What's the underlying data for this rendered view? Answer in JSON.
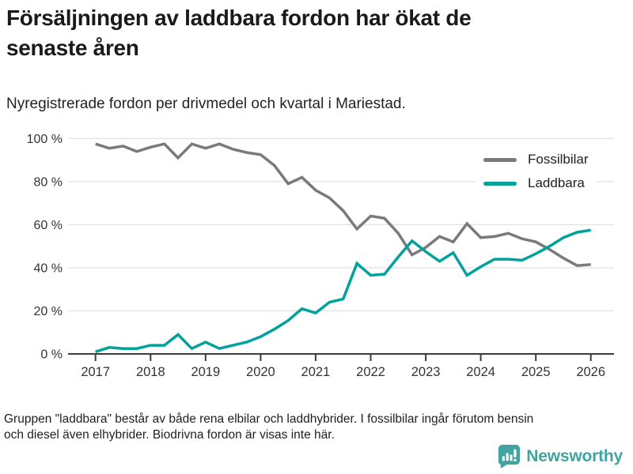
{
  "header": {
    "title": "Försäljningen av laddbara fordon har ökat de\nsenaste åren",
    "subtitle": "Nyregistrerade fordon per drivmedel och kvartal i Mariestad."
  },
  "footer": {
    "note": "Gruppen \"laddbara\" består av både rena elbilar och laddhybrider. I fossilbilar ingår förutom bensin\noch diesel även elhybrider. Biodrivna fordon är visas inte här."
  },
  "logo": {
    "text": "Newsworthy",
    "color": "#42a3a0",
    "icon": "speech-bubble-with-bar-chart-and-exclamation"
  },
  "chart_data": {
    "type": "line",
    "x_unit": "quarter",
    "x_start": "2017 Q1",
    "x_end": "2026 Q1",
    "xtick_labels": [
      "2017",
      "2018",
      "2019",
      "2020",
      "2021",
      "2022",
      "2023",
      "2024",
      "2025",
      "2026"
    ],
    "ytick_labels": [
      "0 %",
      "20 %",
      "40 %",
      "60 %",
      "80 %",
      "100 %"
    ],
    "ylim": [
      0,
      100
    ],
    "grid": "horizontal",
    "legend_position": "top-right-inside",
    "colors": {
      "gridline": "#e2e2e2",
      "axis": "#3c3c3c",
      "tick_text": "#333333"
    },
    "series": [
      {
        "name": "Fossilbilar",
        "color": "#7a7a7a",
        "values": [
          97.5,
          95.5,
          96.5,
          94,
          96,
          97.5,
          91,
          97.5,
          95.5,
          97.5,
          95,
          93.5,
          92.5,
          87.5,
          79,
          82,
          76,
          72.5,
          66.5,
          58,
          64,
          63,
          56,
          46,
          49.5,
          54.5,
          52,
          60.5,
          54,
          54.5,
          56,
          53.5,
          52,
          48.5,
          44.5,
          41,
          41.5
        ]
      },
      {
        "name": "Laddbara",
        "color": "#00a39b",
        "values": [
          1,
          3,
          2.5,
          2.5,
          4,
          4,
          9,
          2.5,
          5.5,
          2.5,
          4,
          5.5,
          8,
          11.5,
          15.5,
          21,
          19,
          24,
          25.5,
          42,
          36.5,
          37,
          45,
          52.5,
          47.5,
          43,
          47,
          36.5,
          40.5,
          44,
          44,
          43.5,
          46.5,
          50,
          54,
          56.5,
          57.5
        ]
      }
    ]
  }
}
